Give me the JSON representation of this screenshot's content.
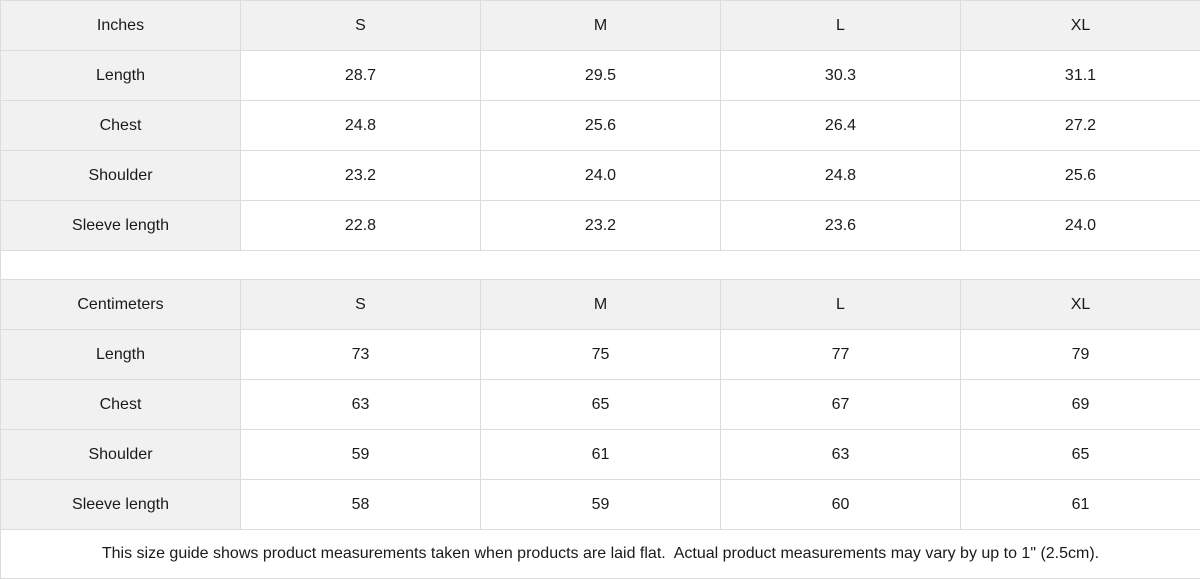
{
  "tables": [
    {
      "unit_label": "Inches",
      "columns": [
        "S",
        "M",
        "L",
        "XL"
      ],
      "rows": [
        {
          "label": "Length",
          "values": [
            "28.7",
            "29.5",
            "30.3",
            "31.1"
          ]
        },
        {
          "label": "Chest",
          "values": [
            "24.8",
            "25.6",
            "26.4",
            "27.2"
          ]
        },
        {
          "label": "Shoulder",
          "values": [
            "23.2",
            "24.0",
            "24.8",
            "25.6"
          ]
        },
        {
          "label": "Sleeve length",
          "values": [
            "22.8",
            "23.2",
            "23.6",
            "24.0"
          ]
        }
      ]
    },
    {
      "unit_label": "Centimeters",
      "columns": [
        "S",
        "M",
        "L",
        "XL"
      ],
      "rows": [
        {
          "label": "Length",
          "values": [
            "73",
            "75",
            "77",
            "79"
          ]
        },
        {
          "label": "Chest",
          "values": [
            "63",
            "65",
            "67",
            "69"
          ]
        },
        {
          "label": "Shoulder",
          "values": [
            "59",
            "61",
            "63",
            "65"
          ]
        },
        {
          "label": "Sleeve length",
          "values": [
            "58",
            "59",
            "60",
            "61"
          ]
        }
      ]
    }
  ],
  "footer": {
    "note": "This size guide shows product measurements taken when products are laid flat.  Actual product measurements may vary by up to 1\" (2.5cm)."
  },
  "colors": {
    "header_bg": "#f1f1f1",
    "border": "#dcdcdc",
    "text": "#1a1a1a",
    "row_bg": "#ffffff"
  }
}
